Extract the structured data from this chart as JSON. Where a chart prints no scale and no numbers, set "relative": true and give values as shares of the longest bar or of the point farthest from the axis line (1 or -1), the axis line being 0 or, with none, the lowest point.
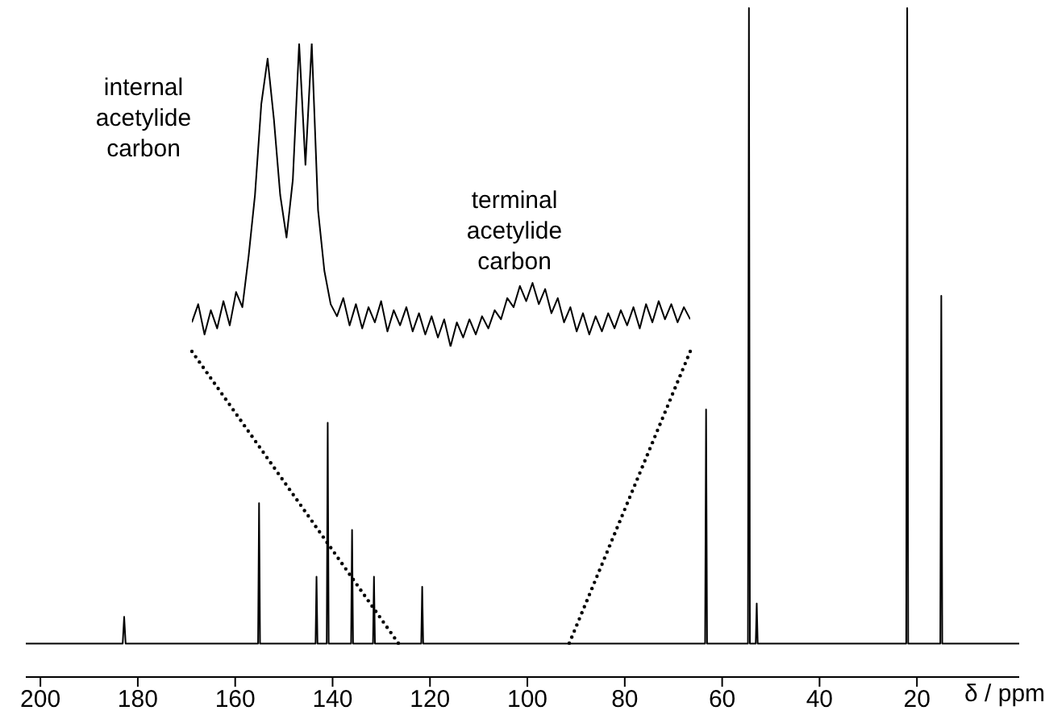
{
  "chart_data": [
    {
      "type": "line",
      "relative": true,
      "xlabel": "δ / ppm",
      "xlim": [
        203,
        -1
      ],
      "xticks": [
        200,
        180,
        160,
        140,
        120,
        100,
        80,
        60,
        40,
        20
      ],
      "x": [
        203,
        183.1,
        182.8,
        182.5,
        155.3,
        155.1,
        154.9,
        143.5,
        143.3,
        143.1,
        141.2,
        141.0,
        140.8,
        136.2,
        136.0,
        135.8,
        131.7,
        131.5,
        131.3,
        121.8,
        121.6,
        121.4,
        63.5,
        63.3,
        63.1,
        54.7,
        54.5,
        54.3,
        53.1,
        52.9,
        52.7,
        22.2,
        22.0,
        21.8,
        15.2,
        15.0,
        14.8,
        -1
      ],
      "series": [
        {
          "color": "#000000",
          "values": [
            0.05,
            0.05,
            0.09,
            0.05,
            0.05,
            0.26,
            0.05,
            0.05,
            0.15,
            0.05,
            0.05,
            0.38,
            0.05,
            0.05,
            0.22,
            0.05,
            0.05,
            0.15,
            0.05,
            0.05,
            0.135,
            0.05,
            0.05,
            0.4,
            0.05,
            0.05,
            1,
            0.05,
            0.05,
            0.11,
            0.05,
            0.05,
            1,
            0.05,
            0.05,
            0.57,
            0.05,
            0.05
          ]
        }
      ]
    },
    {
      "type": "line",
      "relative": true,
      "tick_labels": false,
      "annotations": [
        "internal acetylide carbon",
        "terminal acetylide carbon"
      ],
      "categories": [
        null,
        null,
        null,
        null,
        null,
        null,
        null,
        null,
        null,
        null,
        null,
        null,
        null,
        null,
        null,
        null,
        null,
        null,
        null,
        null,
        null,
        null,
        null,
        null,
        null,
        null,
        null,
        null,
        null,
        null,
        null,
        null,
        null,
        null,
        null,
        null,
        null,
        null,
        null,
        null,
        null,
        null,
        null,
        null,
        null,
        null,
        null,
        null,
        null,
        null,
        null,
        null,
        null,
        null,
        null,
        null,
        null,
        null,
        null,
        null,
        null,
        null,
        null,
        null,
        null,
        null,
        null,
        null,
        null,
        null,
        null,
        null,
        null,
        null,
        null,
        null,
        null,
        null,
        null,
        null
      ],
      "series": [
        {
          "color": "#000000",
          "values": [
            0.08,
            0.14,
            0.04,
            0.12,
            0.06,
            0.15,
            0.07,
            0.18,
            0.13,
            0.3,
            0.5,
            0.8,
            0.95,
            0.75,
            0.5,
            0.36,
            0.55,
            1,
            0.6,
            1,
            0.45,
            0.25,
            0.14,
            0.1,
            0.16,
            0.07,
            0.14,
            0.06,
            0.13,
            0.08,
            0.15,
            0.05,
            0.12,
            0.07,
            0.13,
            0.05,
            0.11,
            0.04,
            0.1,
            0.03,
            0.09,
            0,
            0.08,
            0.03,
            0.09,
            0.04,
            0.1,
            0.06,
            0.12,
            0.09,
            0.16,
            0.13,
            0.2,
            0.15,
            0.21,
            0.14,
            0.19,
            0.11,
            0.16,
            0.08,
            0.13,
            0.05,
            0.11,
            0.04,
            0.1,
            0.05,
            0.11,
            0.06,
            0.12,
            0.07,
            0.13,
            0.06,
            0.14,
            0.08,
            0.15,
            0.09,
            0.14,
            0.08,
            0.13,
            0.09
          ]
        }
      ]
    }
  ]
}
